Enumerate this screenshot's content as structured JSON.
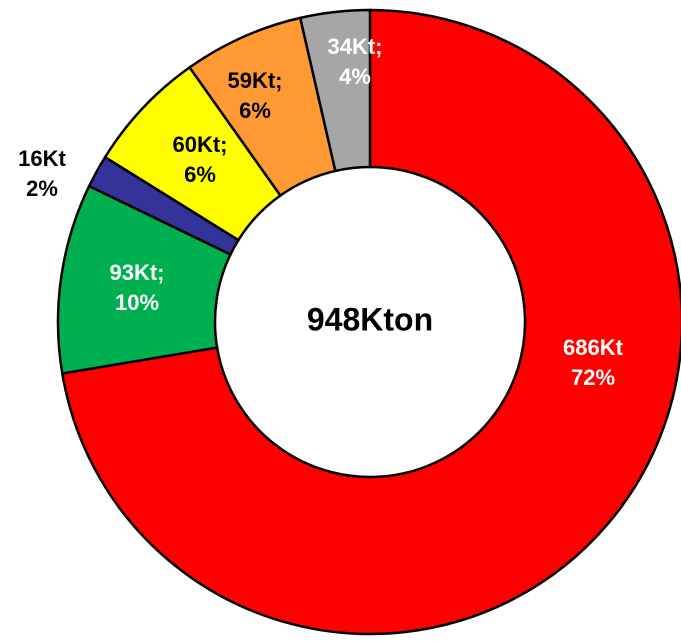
{
  "chart_data": {
    "type": "donut",
    "center_label": "948Kton",
    "categories": [
      null,
      null,
      null,
      null,
      null,
      null
    ],
    "values": [
      686,
      93,
      16,
      60,
      59,
      34
    ],
    "value_labels": [
      [
        "686Kt",
        "72%"
      ],
      [
        "93Kt;",
        "10%"
      ],
      [
        "16Kt",
        "2%"
      ],
      [
        "60Kt;",
        "6%"
      ],
      [
        "59Kt;",
        "6%"
      ],
      [
        "34Kt;",
        "4%"
      ]
    ],
    "colors": [
      "#ff0000",
      "#00b050",
      "#333399",
      "#ffff00",
      "#ff9933",
      "#a6a6a6"
    ]
  }
}
